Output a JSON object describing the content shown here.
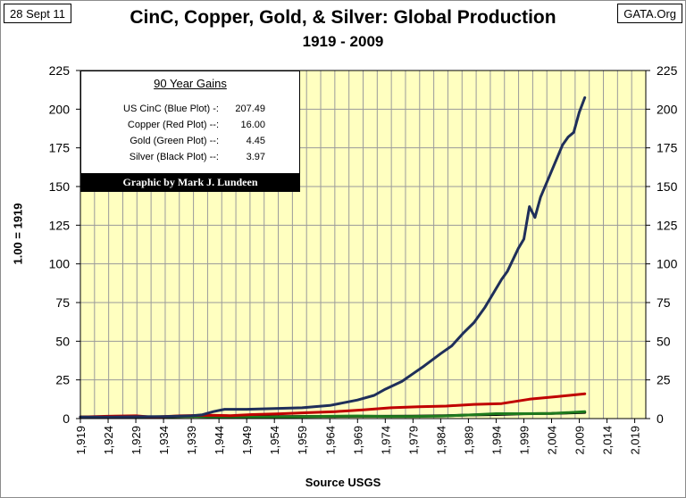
{
  "header": {
    "date": "28 Sept 11",
    "source_site": "GATA.Org"
  },
  "chart_data": {
    "type": "line",
    "title": "CinC, Copper, Gold, & Silver: Global Production",
    "subtitle": "1919 - 2009",
    "ylabel": "1.00 = 1919",
    "xlabel": "Source USGS",
    "ylim": [
      0,
      225
    ],
    "xlim": [
      1919,
      2021
    ],
    "yticks": [
      "0",
      "25",
      "50",
      "75",
      "100",
      "125",
      "150",
      "175",
      "200",
      "225"
    ],
    "xticks": [
      "1,919",
      "1,924",
      "1,929",
      "1,934",
      "1,939",
      "1,944",
      "1,949",
      "1,954",
      "1,959",
      "1,964",
      "1,969",
      "1,974",
      "1,979",
      "1,984",
      "1,989",
      "1,994",
      "1,999",
      "2,004",
      "2,009",
      "2,014",
      "2,019"
    ],
    "grid": true,
    "background": "#ffffc0",
    "series": [
      {
        "color": "#1f2f5a",
        "points": [
          [
            1919,
            1
          ],
          [
            1924,
            1
          ],
          [
            1929,
            1.2
          ],
          [
            1934,
            1.3
          ],
          [
            1939,
            1.8
          ],
          [
            1941,
            2.5
          ],
          [
            1943,
            4.5
          ],
          [
            1945,
            6
          ],
          [
            1949,
            6
          ],
          [
            1954,
            6.5
          ],
          [
            1959,
            7
          ],
          [
            1964,
            8.5
          ],
          [
            1969,
            12
          ],
          [
            1972,
            15
          ],
          [
            1974,
            19
          ],
          [
            1977,
            24
          ],
          [
            1979,
            29
          ],
          [
            1981,
            34
          ],
          [
            1984,
            42
          ],
          [
            1986,
            47
          ],
          [
            1988,
            55
          ],
          [
            1990,
            62
          ],
          [
            1992,
            72
          ],
          [
            1994,
            84
          ],
          [
            1995,
            90
          ],
          [
            1996,
            95
          ],
          [
            1998,
            110
          ],
          [
            1999,
            116
          ],
          [
            2000,
            137
          ],
          [
            2001,
            130
          ],
          [
            2002,
            143
          ],
          [
            2004,
            160
          ],
          [
            2006,
            177
          ],
          [
            2007,
            182
          ],
          [
            2008,
            185
          ],
          [
            2009,
            198
          ],
          [
            2010,
            207.49
          ]
        ]
      },
      {
        "color": "#c00000",
        "points": [
          [
            1919,
            1
          ],
          [
            1924,
            1.5
          ],
          [
            1929,
            1.8
          ],
          [
            1932,
            0.9
          ],
          [
            1937,
            1.8
          ],
          [
            1942,
            2.2
          ],
          [
            1946,
            1.9
          ],
          [
            1950,
            2.6
          ],
          [
            1955,
            3.1
          ],
          [
            1960,
            3.8
          ],
          [
            1965,
            4.5
          ],
          [
            1970,
            5.6
          ],
          [
            1975,
            7
          ],
          [
            1980,
            7.6
          ],
          [
            1985,
            8.1
          ],
          [
            1990,
            9.2
          ],
          [
            1995,
            9.7
          ],
          [
            2000,
            12.5
          ],
          [
            2005,
            14.2
          ],
          [
            2010,
            16
          ]
        ]
      },
      {
        "color": "#1e7a1e",
        "points": [
          [
            1919,
            1
          ],
          [
            1929,
            1
          ],
          [
            1934,
            1.2
          ],
          [
            1939,
            1.4
          ],
          [
            1944,
            1
          ],
          [
            1949,
            0.9
          ],
          [
            1954,
            1
          ],
          [
            1959,
            1.2
          ],
          [
            1964,
            1.5
          ],
          [
            1969,
            1.7
          ],
          [
            1974,
            1.4
          ],
          [
            1979,
            1.4
          ],
          [
            1984,
            1.6
          ],
          [
            1989,
            2.3
          ],
          [
            1994,
            3.2
          ],
          [
            1999,
            3.2
          ],
          [
            2004,
            3.3
          ],
          [
            2010,
            4.45
          ]
        ]
      },
      {
        "color": "#000000",
        "points": [
          [
            1919,
            1
          ],
          [
            1929,
            1.3
          ],
          [
            1934,
            0.9
          ],
          [
            1939,
            1.6
          ],
          [
            1944,
            1.4
          ],
          [
            1949,
            1.2
          ],
          [
            1954,
            1.3
          ],
          [
            1959,
            1.4
          ],
          [
            1964,
            1.4
          ],
          [
            1969,
            1.5
          ],
          [
            1974,
            1.5
          ],
          [
            1979,
            1.6
          ],
          [
            1984,
            1.8
          ],
          [
            1989,
            2.3
          ],
          [
            1994,
            2.6
          ],
          [
            1999,
            3.1
          ],
          [
            2004,
            3.3
          ],
          [
            2010,
            3.97
          ]
        ]
      }
    ],
    "legend_box": {
      "heading": "90 Year Gains",
      "rows": [
        {
          "label": "US CinC (Blue Plot) -:",
          "value": "207.49"
        },
        {
          "label": "Copper (Red Plot) --:",
          "value": "16.00"
        },
        {
          "label": "Gold (Green Plot) --:",
          "value": "4.45"
        },
        {
          "label": "Silver (Black Plot) --:",
          "value": "3.97"
        }
      ],
      "credit": "Graphic by Mark J. Lundeen"
    }
  }
}
